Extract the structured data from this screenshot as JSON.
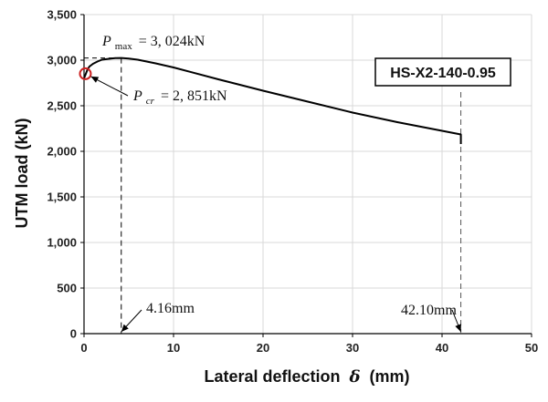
{
  "chart_data": {
    "type": "line",
    "xlabel": "Lateral deflection",
    "xlabel_symbol": "δ",
    "xlabel_unit": "(mm)",
    "ylabel": "UTM load (kN)",
    "xlim": [
      0,
      50
    ],
    "ylim": [
      0,
      3500
    ],
    "x_ticks": [
      "0",
      "10",
      "20",
      "30",
      "40",
      "50"
    ],
    "y_ticks": [
      "0",
      "500",
      "1,000",
      "1,500",
      "2,000",
      "2,500",
      "3,000",
      "3,500"
    ],
    "grid": true,
    "legend_placement": "top-right",
    "series": [
      {
        "name": "HS-X2-140-0.95",
        "x": [
          0,
          0.2,
          0.4,
          0.6,
          1.0,
          1.5,
          2.0,
          3.0,
          3.5,
          4.16,
          5,
          6,
          8,
          10,
          12,
          15,
          20,
          25,
          30,
          35,
          40,
          42.1,
          42.1
        ],
        "y": [
          2800,
          2851,
          2900,
          2930,
          2960,
          2985,
          3005,
          3018,
          3022,
          3024,
          3018,
          3005,
          2965,
          2920,
          2868,
          2790,
          2665,
          2545,
          2425,
          2320,
          2225,
          2185,
          2080
        ]
      }
    ],
    "annotations": {
      "pmax": {
        "symbol": "P",
        "sub": "max",
        "text": "= 3, 024kN",
        "x": 4.16,
        "y": 3024
      },
      "pcr": {
        "symbol": "P",
        "sub": "cr",
        "text": "= 2, 851kN",
        "x": 0.15,
        "y": 2851
      },
      "d1": {
        "text": "4.16mm",
        "x": 4.16
      },
      "d2": {
        "text": "42.10mm",
        "x": 42.1
      }
    },
    "colors": {
      "line": "#000000",
      "marker": "#cc2222",
      "grid": "#d9d9d9"
    }
  }
}
